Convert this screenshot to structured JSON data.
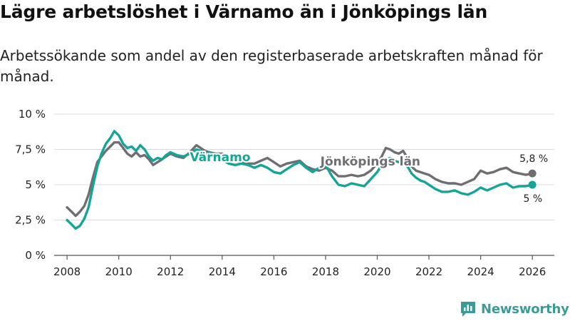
{
  "title": "Lägre arbetslöshet i Värnamo än i Jönköpings län",
  "subtitle": "Arbetssökande som andel av den registerbaserade arbetskraften månad för månad.",
  "logo_text": "Newsworthy",
  "colors": {
    "varnamo": "#13a597",
    "jonkoping": "#6f6f73",
    "grid": "#dcdcdc",
    "axis": "#555555"
  },
  "chart_data": {
    "type": "line",
    "x_unit": "year",
    "xlim": [
      2007.5,
      2026.85
    ],
    "ylim": [
      0,
      10
    ],
    "x_ticks": [
      {
        "value": 2008,
        "label": "2008"
      },
      {
        "value": 2010,
        "label": "2010"
      },
      {
        "value": 2012,
        "label": "2012"
      },
      {
        "value": 2014,
        "label": "2014"
      },
      {
        "value": 2016,
        "label": "2016"
      },
      {
        "value": 2018,
        "label": "2018"
      },
      {
        "value": 2020,
        "label": "2020"
      },
      {
        "value": 2022,
        "label": "2022"
      },
      {
        "value": 2024,
        "label": "2024"
      },
      {
        "value": 2026,
        "label": "2026"
      }
    ],
    "y_ticks": [
      {
        "value": 0,
        "label": "0 %"
      },
      {
        "value": 2.5,
        "label": "2,5 %"
      },
      {
        "value": 5,
        "label": "5 %"
      },
      {
        "value": 7.5,
        "label": "7,5 %"
      },
      {
        "value": 10,
        "label": "10 %"
      }
    ],
    "series": [
      {
        "name": "Jönköpings län",
        "color": "#6f6f73",
        "end_label": "5,8 %",
        "x": [
          2008.0,
          2008.17,
          2008.33,
          2008.5,
          2008.67,
          2008.83,
          2009.0,
          2009.17,
          2009.33,
          2009.5,
          2009.67,
          2009.83,
          2010.0,
          2010.17,
          2010.33,
          2010.5,
          2010.67,
          2010.83,
          2011.0,
          2011.17,
          2011.33,
          2011.5,
          2011.67,
          2011.83,
          2012.0,
          2012.25,
          2012.5,
          2012.75,
          2013.0,
          2013.17,
          2013.33,
          2013.5,
          2013.75,
          2014.0,
          2014.25,
          2014.5,
          2014.75,
          2015.0,
          2015.25,
          2015.5,
          2015.75,
          2016.0,
          2016.25,
          2016.5,
          2016.75,
          2017.0,
          2017.25,
          2017.5,
          2017.75,
          2018.0,
          2018.25,
          2018.5,
          2018.75,
          2019.0,
          2019.25,
          2019.5,
          2019.75,
          2020.0,
          2020.17,
          2020.33,
          2020.5,
          2020.67,
          2020.83,
          2021.0,
          2021.17,
          2021.33,
          2021.5,
          2021.67,
          2021.83,
          2022.0,
          2022.25,
          2022.5,
          2022.75,
          2023.0,
          2023.25,
          2023.5,
          2023.75,
          2024.0,
          2024.25,
          2024.5,
          2024.75,
          2025.0,
          2025.25,
          2025.5,
          2025.75,
          2026.0
        ],
        "values": [
          3.4,
          3.1,
          2.8,
          3.1,
          3.5,
          4.3,
          5.5,
          6.6,
          7.0,
          7.4,
          7.7,
          8.0,
          8.0,
          7.6,
          7.2,
          7.0,
          7.3,
          7.0,
          7.1,
          6.8,
          6.4,
          6.6,
          6.8,
          7.0,
          7.2,
          7.0,
          6.9,
          7.3,
          7.8,
          7.6,
          7.4,
          7.3,
          7.2,
          7.2,
          6.9,
          6.7,
          6.6,
          6.5,
          6.5,
          6.7,
          6.9,
          6.6,
          6.3,
          6.5,
          6.6,
          6.7,
          6.3,
          6.1,
          6.0,
          6.2,
          6.0,
          5.6,
          5.6,
          5.7,
          5.6,
          5.7,
          6.0,
          6.5,
          7.0,
          7.6,
          7.5,
          7.3,
          7.2,
          7.4,
          6.9,
          6.3,
          6.0,
          5.9,
          5.8,
          5.7,
          5.4,
          5.2,
          5.1,
          5.1,
          5.0,
          5.2,
          5.4,
          6.0,
          5.8,
          5.9,
          6.1,
          6.2,
          5.9,
          5.8,
          5.7,
          5.8
        ]
      },
      {
        "name": "Värnamo",
        "color": "#13a597",
        "end_label": "5 %",
        "x": [
          2008.0,
          2008.17,
          2008.33,
          2008.5,
          2008.67,
          2008.83,
          2009.0,
          2009.17,
          2009.33,
          2009.5,
          2009.67,
          2009.83,
          2010.0,
          2010.17,
          2010.33,
          2010.5,
          2010.67,
          2010.83,
          2011.0,
          2011.17,
          2011.33,
          2011.5,
          2011.67,
          2011.83,
          2012.0,
          2012.25,
          2012.5,
          2012.75,
          2013.0,
          2013.17,
          2013.33,
          2013.5,
          2013.75,
          2014.0,
          2014.25,
          2014.5,
          2014.75,
          2015.0,
          2015.25,
          2015.5,
          2015.75,
          2016.0,
          2016.25,
          2016.5,
          2016.75,
          2017.0,
          2017.25,
          2017.5,
          2017.75,
          2018.0,
          2018.25,
          2018.5,
          2018.75,
          2019.0,
          2019.25,
          2019.5,
          2019.75,
          2020.0,
          2020.17,
          2020.33,
          2020.5,
          2020.67,
          2020.83,
          2021.0,
          2021.17,
          2021.33,
          2021.5,
          2021.67,
          2021.83,
          2022.0,
          2022.25,
          2022.5,
          2022.75,
          2023.0,
          2023.25,
          2023.5,
          2023.75,
          2024.0,
          2024.25,
          2024.5,
          2024.75,
          2025.0,
          2025.25,
          2025.5,
          2025.75,
          2026.0
        ],
        "values": [
          2.5,
          2.2,
          1.9,
          2.1,
          2.6,
          3.4,
          4.9,
          6.3,
          7.2,
          7.9,
          8.3,
          8.8,
          8.5,
          7.9,
          7.6,
          7.7,
          7.4,
          7.8,
          7.5,
          7.0,
          6.7,
          6.9,
          6.8,
          7.1,
          7.3,
          7.1,
          7.0,
          7.2,
          7.5,
          7.4,
          7.0,
          7.3,
          6.9,
          6.8,
          6.5,
          6.4,
          6.5,
          6.4,
          6.2,
          6.4,
          6.2,
          5.9,
          5.8,
          6.1,
          6.4,
          6.6,
          6.2,
          5.9,
          6.2,
          6.4,
          5.6,
          5.0,
          4.9,
          5.1,
          5.0,
          4.9,
          5.4,
          5.9,
          6.4,
          6.8,
          6.9,
          6.7,
          6.6,
          6.7,
          6.3,
          5.8,
          5.5,
          5.3,
          5.2,
          5.0,
          4.7,
          4.5,
          4.5,
          4.6,
          4.4,
          4.3,
          4.5,
          4.8,
          4.6,
          4.8,
          5.0,
          5.1,
          4.8,
          4.9,
          4.9,
          5.0
        ]
      }
    ]
  }
}
